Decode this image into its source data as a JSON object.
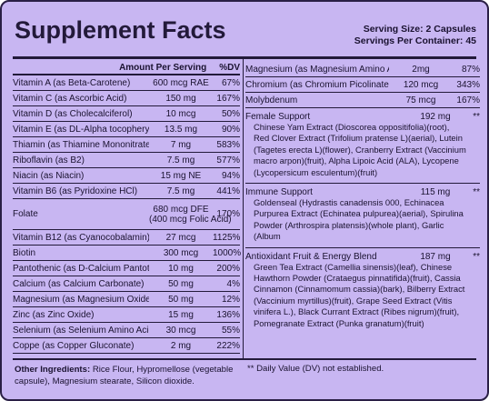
{
  "header": {
    "title": "Supplement Facts",
    "serving_size": "Serving Size: 2 Capsules",
    "servings_per_container": "Servings Per Container: 45"
  },
  "table": {
    "columns": [
      "Amount Per Serving",
      "%DV"
    ],
    "rows": [
      {
        "name": "Vitamin A (as Beta-Carotene)",
        "amount": "600 mcg RAE",
        "dv": "67%"
      },
      {
        "name": "Vitamin C (as Ascorbic Acid)",
        "amount": "150 mg",
        "dv": "167%"
      },
      {
        "name": "Vitamin D (as Cholecalciferol)",
        "amount": "10 mcg",
        "dv": "50%"
      },
      {
        "name": "Vitamin E (as DL-Alpha tocopheryl acetate)",
        "amount": "13.5 mg",
        "dv": "90%"
      },
      {
        "name": "Thiamin (as Thiamine Mononitrate)",
        "amount": "7 mg",
        "dv": "583%"
      },
      {
        "name": "Riboflavin (as B2)",
        "amount": "7.5 mg",
        "dv": "577%"
      },
      {
        "name": "Niacin (as Niacin)",
        "amount": "15 mg  NE",
        "dv": "94%"
      },
      {
        "name": "Vitamin B6 (as Pyridoxine HCl)",
        "amount": "7.5 mg",
        "dv": "441%"
      },
      {
        "name": "Folate",
        "amount": "680 mcg DFE",
        "note": "(400 mcg Folic Acid)",
        "dv": "170%"
      },
      {
        "name": "Vitamin B12 (as Cyanocobalamin)",
        "amount": "27 mcg",
        "dv": "1125%"
      },
      {
        "name": "Biotin",
        "amount": "300 mcg",
        "dv": "1000%"
      },
      {
        "name": "Pantothenic (as D-Calcium Pantothenate)",
        "amount": "10 mg",
        "dv": "200%"
      },
      {
        "name": "Calcium (as Calcium Carbonate)",
        "amount": "50 mg",
        "dv": "4%"
      },
      {
        "name": "Magnesium (as Magnesium Oxide)",
        "amount": "50 mg",
        "dv": "12%"
      },
      {
        "name": "Zinc (as Zinc Oxide)",
        "amount": "15 mg",
        "dv": "136%"
      },
      {
        "name": "Selenium (as Selenium Amino Acid Chelate)",
        "amount": "30 mcg",
        "dv": "55%"
      },
      {
        "name": "Coppe (as Copper Gluconate)",
        "amount": "2 mg",
        "dv": "222%"
      }
    ]
  },
  "other_ingredients": {
    "label": "Other Ingredients:",
    "text": "Rice Flour, Hypromellose (vegetable capsule), Magnesium stearate, Silicon dioxide."
  },
  "right_table": {
    "rows": [
      {
        "name": "Magnesium (as Magnesium Amino Acid Chelate)",
        "amount": "2mg",
        "dv": "87%"
      },
      {
        "name": "Chromium (as Chromium Picolinate)",
        "amount": "120 mcg",
        "dv": "343%"
      },
      {
        "name": "Molybdenum",
        "amount": "75 mcg",
        "dv": "167%"
      }
    ]
  },
  "blends": [
    {
      "name": "Female Support",
      "amount": "192 mg",
      "dv": "**",
      "ingredients": "Chinese Yam Extract (Dioscorea oppositifolia)(root), Red Clover Extract (Trifolium pratense L)(aerial), Lutein (Tagetes erecta L)(flower), Cranberry Extract (Vaccinium macro arpon)(fruit), Alpha Lipoic Acid (ALA), Lycopene (Lycopersicum esculentum)(fruit)"
    },
    {
      "name": "Immune Support",
      "amount": "115 mg",
      "dv": "**",
      "ingredients": "Goldenseal (Hydrastis canadensis 000, Echinacea Purpurea Extract (Echinatea pulpurea)(aerial), Spirulina Powder (Arthrospira platensis)(whole plant), Garlic (Album"
    },
    {
      "name": "Antioxidant Fruit & Energy Blend",
      "amount": "187 mg",
      "dv": "**",
      "ingredients": "Green Tea Extract (Camellia sinensis)(leaf), Chinese Hawthorn Powder (Crataegus pinnatifida)(fruit), Cassia Cinnamon (Cinnamomum cassia)(bark), Bilberry Extract (Vaccinium myrtillus)(fruit), Grape Seed Extract (Vitis vinifera L.), Black Currant Extract (Ribes nigrum)(fruit), Pomegranate Extract (Punka granatum)(fruit)"
    }
  ],
  "footnote": "** Daily Value (DV) not established."
}
